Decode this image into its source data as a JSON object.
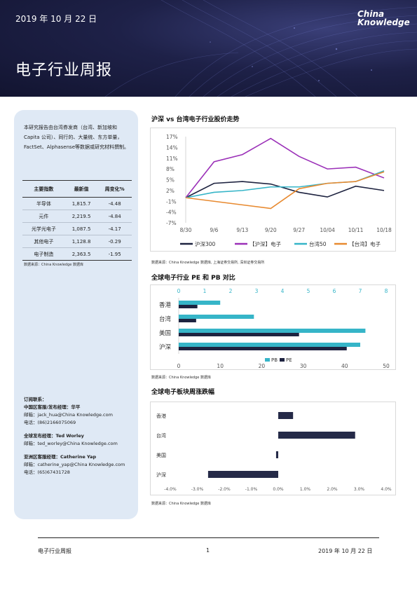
{
  "header": {
    "date": "2019 年 10 月 22 日",
    "title": "电子行业周报",
    "logo_line1": "China",
    "logo_line2": "Knowledge"
  },
  "sidebar": {
    "intro": "本研究报告由台湾券发商（台湾、新加坡和 Capita 公司）、同行的、大量统、东方单量，FactSet、Alphasense等数据或研究材料撰制。",
    "table": {
      "headers": [
        "主要指数",
        "最新值",
        "周变化%"
      ],
      "rows": [
        [
          "半导体",
          "1,815.7",
          "-4.48"
        ],
        [
          "元件",
          "2,219.5",
          "-4.84"
        ],
        [
          "光学光电子",
          "1,087.5",
          "-4.17"
        ],
        [
          "其他电子",
          "1,128.8",
          "-0.29"
        ],
        [
          "电子制造",
          "2,363.5",
          "-1.95"
        ]
      ]
    },
    "source": "数据来源：China Knowledge 数据库",
    "contacts": {
      "heading": "订阅联系：",
      "blocks": [
        {
          "role": "中国区客服/发布经理：华平",
          "email": "邮箱：jack_hua@China Knowledge.com",
          "phone": "电话：(86)2166075069"
        },
        {
          "role": "全球发布经理：Ted Worley",
          "email": "邮箱：ted_worley@China Knowledge.com",
          "phone": ""
        },
        {
          "role": "亚洲区客服经理：Catherine Yap",
          "email": "邮箱：catherine_yap@China Knowledge.com",
          "phone": "电话：(65)67431728"
        }
      ]
    }
  },
  "sections": {
    "s1_title": "沪深 vs 台湾电子行业股价走势",
    "s1_source": "数据来源：China Knowledge 数据库, 上海证券交易所, 深圳证券交易所",
    "s2_title": "全球电子行业 PE 和 PB 对比",
    "s2_source": "数据来源：China Knowledge 数据库",
    "s3_title": "全球电子板块周涨跌幅",
    "s3_source": "数据来源：China Knowledge 数据库"
  },
  "chart_data": [
    {
      "type": "line",
      "categories": [
        "8/30",
        "9/6",
        "9/13",
        "9/20",
        "9/27",
        "10/04",
        "10/11",
        "10/18"
      ],
      "y_ticks": [
        "17%",
        "14%",
        "11%",
        "8%",
        "5%",
        "2%",
        "-1%",
        "-4%",
        "-7%"
      ],
      "ylim": [
        -7,
        17
      ],
      "legend_position": "bottom",
      "series": [
        {
          "name": "沪深300",
          "color": "#1e2340",
          "values": [
            0,
            4,
            4.5,
            3.8,
            1.5,
            0.2,
            3.2,
            2
          ]
        },
        {
          "name": "【沪深】电子",
          "color": "#9b30b8",
          "values": [
            0,
            10,
            12,
            16.5,
            11.5,
            8,
            8.5,
            5.5
          ]
        },
        {
          "name": "台湾50",
          "color": "#36b5c8",
          "values": [
            0,
            1.5,
            2,
            3,
            3,
            4,
            4.5,
            7.5
          ]
        },
        {
          "name": "【台湾】电子",
          "color": "#e88a30",
          "values": [
            0,
            -1,
            -2,
            -3,
            2.5,
            4,
            4.5,
            7.2
          ]
        }
      ]
    },
    {
      "type": "bar",
      "orientation": "horizontal",
      "categories": [
        "香港",
        "台湾",
        "美国",
        "沪深"
      ],
      "top_axis_ticks": [
        "0",
        "1",
        "2",
        "3",
        "4",
        "5",
        "6",
        "7",
        "8"
      ],
      "bottom_axis_ticks": [
        "0",
        "10",
        "20",
        "30",
        "40",
        "50"
      ],
      "legend_position": "bottom",
      "series": [
        {
          "name": "PB",
          "color": "#36b5c8",
          "axis": "top",
          "values": [
            1.6,
            2.9,
            7.2,
            7.0
          ]
        },
        {
          "name": "PE",
          "color": "#1e2340",
          "axis": "bottom",
          "values": [
            4.5,
            4.2,
            29,
            40.5
          ]
        }
      ]
    },
    {
      "type": "bar",
      "orientation": "horizontal",
      "categories": [
        "香港",
        "台湾",
        "美国",
        "沪深"
      ],
      "x_ticks": [
        "-4.0%",
        "-3.0%",
        "-2.0%",
        "-1.0%",
        "0.0%",
        "1.0%",
        "2.0%",
        "3.0%",
        "4.0%"
      ],
      "xlim": [
        -4,
        4
      ],
      "series": [
        {
          "name": "",
          "color": "#252a48",
          "values": [
            0.55,
            2.85,
            -0.08,
            -2.6
          ]
        }
      ]
    }
  ]
}
